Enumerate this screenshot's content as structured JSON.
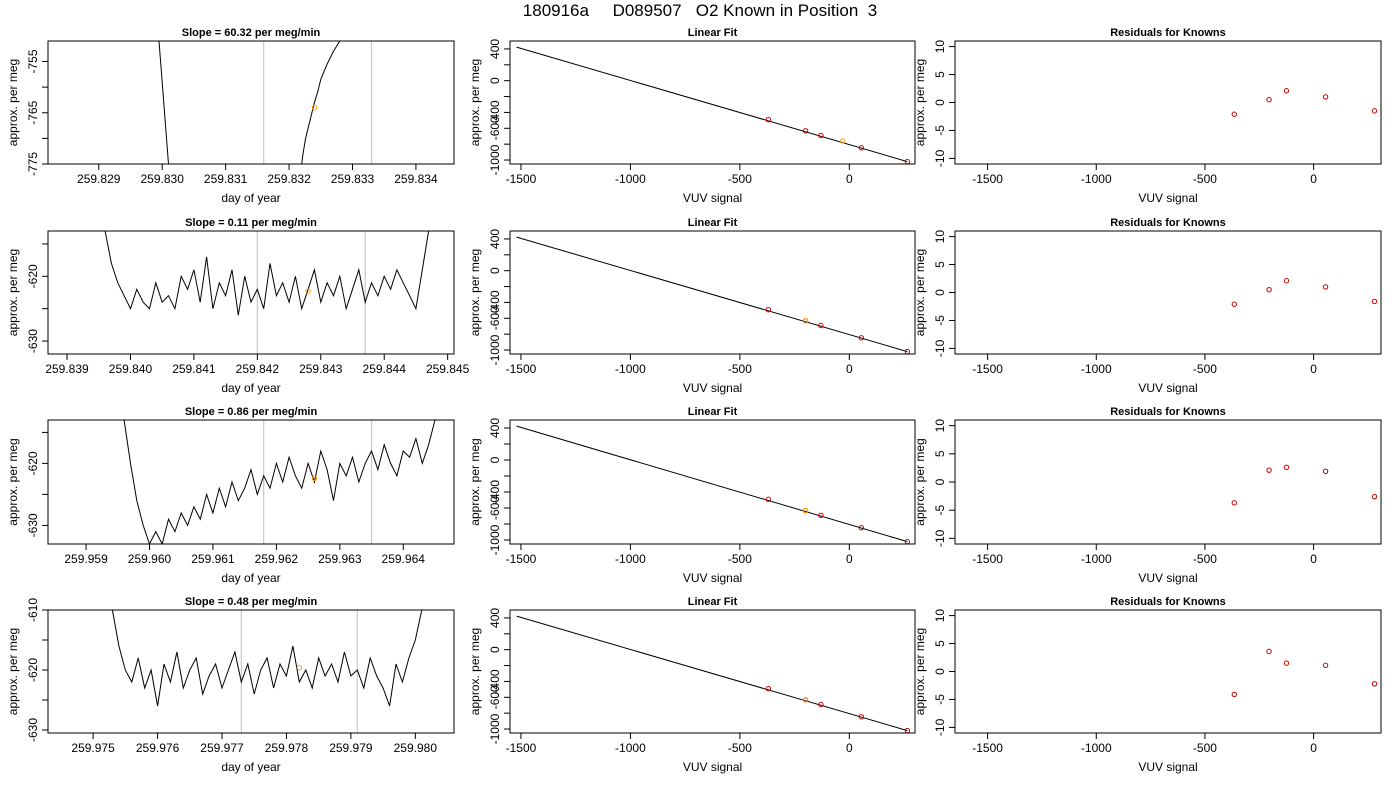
{
  "figure": {
    "title": "180916a     D089507   O2 Known in Position  3"
  },
  "chart_data": [
    {
      "panel": "row1-col1",
      "type": "line",
      "title": "Slope =  60.32  per meg/min",
      "xlabel": "day of year",
      "ylabel": "approx. per meg",
      "xlim": [
        259.8282,
        259.8346
      ],
      "ylim": [
        -775,
        -751
      ],
      "xticks": [
        259.829,
        259.83,
        259.831,
        259.832,
        259.833,
        259.834
      ],
      "xtick_labels": [
        "259.829",
        "259.830",
        "259.831",
        "259.832",
        "259.833",
        "259.834"
      ],
      "yticks": [
        -775,
        -765,
        -755
      ],
      "ytick_labels": [
        "-775",
        "-765",
        "-755"
      ],
      "yminor": [
        -770,
        -760
      ],
      "vlines": [
        259.8316,
        259.8333
      ],
      "marker": {
        "x": 259.8324,
        "y": -764.0,
        "color": "#ff9900"
      },
      "series": [
        {
          "x": [
            259.82995,
            259.8301
          ],
          "y": [
            -751,
            -775
          ]
        },
        {
          "x": [
            259.8322,
            259.83222,
            259.83226,
            259.8323,
            259.83235,
            259.8324,
            259.83245,
            259.8325,
            259.8326,
            259.8327,
            259.8328
          ],
          "y": [
            -775,
            -773,
            -770,
            -768,
            -765.5,
            -763,
            -761,
            -758.5,
            -755.5,
            -753,
            -751
          ]
        }
      ]
    },
    {
      "panel": "row2-col1",
      "type": "line",
      "title": "Slope =  0.11  per meg/min",
      "xlabel": "day of year",
      "ylabel": "approx. per meg",
      "xlim": [
        259.8387,
        259.8451
      ],
      "ylim": [
        -632,
        -613
      ],
      "xticks": [
        259.839,
        259.84,
        259.841,
        259.842,
        259.843,
        259.844,
        259.845
      ],
      "xtick_labels": [
        "259.839",
        "259.840",
        "259.841",
        "259.842",
        "259.843",
        "259.844",
        "259.845"
      ],
      "yticks": [
        -630,
        -620
      ],
      "ytick_labels": [
        "-630",
        "-620"
      ],
      "yminor": [
        -625,
        -615
      ],
      "vlines": [
        259.842,
        259.8437
      ],
      "marker": {
        "x": 259.8428,
        "y": -622.3,
        "color": "#ff9900"
      },
      "series": [
        {
          "x": [
            259.8396,
            259.8397,
            259.8398,
            259.8399,
            259.84,
            259.8401,
            259.8402,
            259.8403,
            259.8404,
            259.8405,
            259.8406,
            259.8407,
            259.8408,
            259.8409,
            259.841,
            259.8411,
            259.8412,
            259.8413,
            259.8414,
            259.8415,
            259.8416,
            259.8417,
            259.8418,
            259.8419,
            259.842,
            259.8421,
            259.8422,
            259.8423,
            259.8424,
            259.8425,
            259.8426,
            259.8427,
            259.8428,
            259.8429,
            259.843,
            259.8431,
            259.8432,
            259.8433,
            259.8434,
            259.8435,
            259.8436,
            259.8437,
            259.8438,
            259.8439,
            259.844,
            259.8441,
            259.8442,
            259.8443,
            259.8444,
            259.8445,
            259.8446,
            259.8447
          ],
          "y": [
            -613,
            -618,
            -621,
            -623,
            -625,
            -622,
            -624,
            -625,
            -621,
            -624,
            -623,
            -625,
            -620,
            -622,
            -619,
            -624,
            -617,
            -625,
            -621,
            -623,
            -619,
            -626,
            -620,
            -624,
            -622,
            -625,
            -618,
            -623,
            -621,
            -624,
            -620,
            -625,
            -622,
            -619,
            -624,
            -621,
            -623,
            -620,
            -625,
            -622,
            -619,
            -624,
            -621,
            -623,
            -620,
            -622,
            -619,
            -621,
            -623,
            -625,
            -619,
            -613
          ]
        }
      ]
    },
    {
      "panel": "row3-col1",
      "type": "line",
      "title": "Slope =  0.86  per meg/min",
      "xlabel": "day of year",
      "ylabel": "approx. per meg",
      "xlim": [
        259.9584,
        259.9648
      ],
      "ylim": [
        -633,
        -613
      ],
      "xticks": [
        259.959,
        259.96,
        259.961,
        259.962,
        259.963,
        259.964
      ],
      "xtick_labels": [
        "259.959",
        "259.960",
        "259.961",
        "259.962",
        "259.963",
        "259.964"
      ],
      "yticks": [
        -630,
        -620
      ],
      "ytick_labels": [
        "-630",
        "-620"
      ],
      "yminor": [
        -625,
        -615
      ],
      "vlines": [
        259.9618,
        259.9635
      ],
      "marker": {
        "x": 259.9626,
        "y": -622.4,
        "color": "#ff9900"
      },
      "series": [
        {
          "x": [
            259.9596,
            259.9597,
            259.9598,
            259.9599,
            259.96,
            259.9601,
            259.9602,
            259.9603,
            259.9604,
            259.9605,
            259.9606,
            259.9607,
            259.9608,
            259.9609,
            259.961,
            259.9611,
            259.9612,
            259.9613,
            259.9614,
            259.9615,
            259.9616,
            259.9617,
            259.9618,
            259.9619,
            259.962,
            259.9621,
            259.9622,
            259.9623,
            259.9624,
            259.9625,
            259.9626,
            259.9627,
            259.9628,
            259.9629,
            259.963,
            259.9631,
            259.9632,
            259.9633,
            259.9634,
            259.9635,
            259.9636,
            259.9637,
            259.9638,
            259.9639,
            259.964,
            259.9641,
            259.9642,
            259.9643,
            259.9644,
            259.9645
          ],
          "y": [
            -613,
            -620,
            -626,
            -630,
            -633,
            -631,
            -633,
            -629,
            -631,
            -628,
            -630,
            -627,
            -629,
            -625,
            -628,
            -624,
            -627,
            -623,
            -626,
            -624,
            -621,
            -625,
            -622,
            -624,
            -620,
            -623,
            -619,
            -622,
            -624,
            -620,
            -623,
            -618,
            -621,
            -626,
            -620,
            -622,
            -619,
            -623,
            -620,
            -618,
            -621,
            -617,
            -620,
            -622,
            -618,
            -619,
            -616,
            -620,
            -617,
            -613
          ]
        }
      ]
    },
    {
      "panel": "row4-col1",
      "type": "line",
      "title": "Slope =  0.48  per meg/min",
      "xlabel": "day of year",
      "ylabel": "approx. per meg",
      "xlim": [
        259.9743,
        259.9806
      ],
      "ylim": [
        -630.5,
        -610
      ],
      "xticks": [
        259.975,
        259.976,
        259.977,
        259.978,
        259.979,
        259.98
      ],
      "xtick_labels": [
        "259.975",
        "259.976",
        "259.977",
        "259.978",
        "259.979",
        "259.980"
      ],
      "yticks": [
        -630,
        -620,
        -610
      ],
      "ytick_labels": [
        "-630",
        "-620",
        "-610"
      ],
      "yminor": [
        -625,
        -615
      ],
      "vlines": [
        259.9773,
        259.9791
      ],
      "marker": {
        "x": 259.9782,
        "y": -619.6,
        "color": "#ff9900"
      },
      "series": [
        {
          "x": [
            259.9753,
            259.9754,
            259.9755,
            259.9756,
            259.9757,
            259.9758,
            259.9759,
            259.976,
            259.9761,
            259.9762,
            259.9763,
            259.9764,
            259.9765,
            259.9766,
            259.9767,
            259.9768,
            259.9769,
            259.977,
            259.9771,
            259.9772,
            259.9773,
            259.9774,
            259.9775,
            259.9776,
            259.9777,
            259.9778,
            259.9779,
            259.978,
            259.9781,
            259.9782,
            259.9783,
            259.9784,
            259.9785,
            259.9786,
            259.9787,
            259.9788,
            259.9789,
            259.979,
            259.9791,
            259.9792,
            259.9793,
            259.9794,
            259.9795,
            259.9796,
            259.9797,
            259.9798,
            259.9799,
            259.98,
            259.9801
          ],
          "y": [
            -610,
            -616,
            -620,
            -622,
            -618,
            -623,
            -620,
            -626,
            -619,
            -622,
            -617,
            -623,
            -620,
            -618,
            -624,
            -621,
            -619,
            -623,
            -620,
            -617,
            -622,
            -619,
            -624,
            -620,
            -618,
            -623,
            -619,
            -621,
            -616,
            -622,
            -620,
            -623,
            -618,
            -621,
            -619,
            -622,
            -617,
            -621,
            -620,
            -623,
            -618,
            -621,
            -623,
            -626,
            -619,
            -622,
            -618,
            -615,
            -610
          ]
        }
      ]
    },
    {
      "panel": "row1-col2",
      "type": "scatter",
      "title": "Linear Fit",
      "xlabel": "VUV signal",
      "ylabel": "approx. per meg",
      "xlim": [
        -1550,
        300
      ],
      "ylim": [
        -1050,
        500
      ],
      "xticks": [
        -1500,
        -1000,
        -500,
        0
      ],
      "xtick_labels": [
        "-1500",
        "-1000",
        "-500",
        "0"
      ],
      "yticks": [
        -1000,
        -800,
        -600,
        -400,
        -200,
        0,
        200,
        400
      ],
      "ytick_labels": [
        "-1000",
        "",
        "-600",
        "-400",
        "",
        "0",
        "",
        "400"
      ],
      "fit_line": {
        "x": [
          -1520,
          265
        ],
        "y": [
          423,
          -1020
        ]
      },
      "points": {
        "x": [
          -370,
          -200,
          -130,
          55,
          265
        ],
        "y": [
          -492,
          -632,
          -691,
          -846,
          -1020
        ],
        "color": "#cc0000"
      },
      "marker": {
        "x": -30,
        "y": -760,
        "color": "#ff9900"
      }
    },
    {
      "panel": "row2-col2",
      "type": "scatter",
      "title": "Linear Fit",
      "xlabel": "VUV signal",
      "ylabel": "approx. per meg",
      "xlim": [
        -1550,
        300
      ],
      "ylim": [
        -1050,
        500
      ],
      "xticks": [
        -1500,
        -1000,
        -500,
        0
      ],
      "xtick_labels": [
        "-1500",
        "-1000",
        "-500",
        "0"
      ],
      "yticks": [
        -1000,
        -800,
        -600,
        -400,
        -200,
        0,
        200,
        400
      ],
      "ytick_labels": [
        "-1000",
        "",
        "-600",
        "-400",
        "",
        "0",
        "",
        "400"
      ],
      "fit_line": {
        "x": [
          -1520,
          265
        ],
        "y": [
          423,
          -1020
        ]
      },
      "points": {
        "x": [
          -370,
          -200,
          -130,
          55,
          265
        ],
        "y": [
          -492,
          -632,
          -691,
          -846,
          -1020
        ],
        "color": "#cc0000"
      },
      "marker": {
        "x": -200,
        "y": -632,
        "color": "#ff9900"
      }
    },
    {
      "panel": "row3-col2",
      "type": "scatter",
      "title": "Linear Fit",
      "xlabel": "VUV signal",
      "ylabel": "approx. per meg",
      "xlim": [
        -1550,
        300
      ],
      "ylim": [
        -1050,
        500
      ],
      "xticks": [
        -1500,
        -1000,
        -500,
        0
      ],
      "xtick_labels": [
        "-1500",
        "-1000",
        "-500",
        "0"
      ],
      "yticks": [
        -1000,
        -800,
        -600,
        -400,
        -200,
        0,
        200,
        400
      ],
      "ytick_labels": [
        "-1000",
        "",
        "-600",
        "-400",
        "",
        "0",
        "",
        "400"
      ],
      "fit_line": {
        "x": [
          -1520,
          265
        ],
        "y": [
          423,
          -1020
        ]
      },
      "points": {
        "x": [
          -370,
          -200,
          -130,
          55,
          265
        ],
        "y": [
          -492,
          -632,
          -691,
          -846,
          -1020
        ],
        "color": "#cc0000"
      },
      "marker": {
        "x": -200,
        "y": -632,
        "color": "#ff9900"
      }
    },
    {
      "panel": "row4-col2",
      "type": "scatter",
      "title": "Linear Fit",
      "xlabel": "VUV signal",
      "ylabel": "approx. per meg",
      "xlim": [
        -1550,
        300
      ],
      "ylim": [
        -1050,
        500
      ],
      "xticks": [
        -1500,
        -1000,
        -500,
        0
      ],
      "xtick_labels": [
        "-1500",
        "-1000",
        "-500",
        "0"
      ],
      "yticks": [
        -1000,
        -800,
        -600,
        -400,
        -200,
        0,
        200,
        400
      ],
      "ytick_labels": [
        "-1000",
        "",
        "-600",
        "-400",
        "",
        "0",
        "",
        "400"
      ],
      "fit_line": {
        "x": [
          -1520,
          265
        ],
        "y": [
          423,
          -1020
        ]
      },
      "points": {
        "x": [
          -370,
          -200,
          -130,
          55,
          265
        ],
        "y": [
          -492,
          -632,
          -691,
          -846,
          -1020
        ],
        "color": "#cc0000"
      },
      "marker": {
        "x": -200,
        "y": -632,
        "color": "#ff9900"
      }
    },
    {
      "panel": "row1-col3",
      "type": "scatter",
      "title": "Residuals for Knowns",
      "xlabel": "VUV signal",
      "ylabel": "approx. per meg",
      "xlim": [
        -1650,
        310
      ],
      "ylim": [
        -11,
        11
      ],
      "xticks": [
        -1500,
        -1000,
        -500,
        0
      ],
      "xtick_labels": [
        "-1500",
        "-1000",
        "-500",
        "0"
      ],
      "yticks": [
        -10,
        -5,
        0,
        5,
        10
      ],
      "ytick_labels": [
        "-10",
        "-5",
        "0",
        "5",
        "10"
      ],
      "points": {
        "x": [
          -365,
          -205,
          -125,
          55,
          280
        ],
        "y": [
          -2.1,
          0.5,
          2.1,
          1.0,
          -1.5
        ],
        "color": "#cc0000"
      }
    },
    {
      "panel": "row2-col3",
      "type": "scatter",
      "title": "Residuals for Knowns",
      "xlabel": "VUV signal",
      "ylabel": "approx. per meg",
      "xlim": [
        -1650,
        310
      ],
      "ylim": [
        -11,
        11
      ],
      "xticks": [
        -1500,
        -1000,
        -500,
        0
      ],
      "xtick_labels": [
        "-1500",
        "-1000",
        "-500",
        "0"
      ],
      "yticks": [
        -10,
        -5,
        0,
        5,
        10
      ],
      "ytick_labels": [
        "-10",
        "-5",
        "0",
        "5",
        "10"
      ],
      "points": {
        "x": [
          -365,
          -205,
          -125,
          55,
          280
        ],
        "y": [
          -2.1,
          0.5,
          2.1,
          1.0,
          -1.6
        ],
        "color": "#cc0000"
      }
    },
    {
      "panel": "row3-col3",
      "type": "scatter",
      "title": "Residuals for Knowns",
      "xlabel": "VUV signal",
      "ylabel": "approx. per meg",
      "xlim": [
        -1650,
        310
      ],
      "ylim": [
        -11,
        11
      ],
      "xticks": [
        -1500,
        -1000,
        -500,
        0
      ],
      "xtick_labels": [
        "-1500",
        "-1000",
        "-500",
        "0"
      ],
      "yticks": [
        -10,
        -5,
        0,
        5,
        10
      ],
      "ytick_labels": [
        "-10",
        "-5",
        "0",
        "5",
        "10"
      ],
      "points": {
        "x": [
          -365,
          -205,
          -125,
          55,
          280
        ],
        "y": [
          -3.7,
          2.1,
          2.6,
          1.9,
          -2.6
        ],
        "color": "#cc0000"
      }
    },
    {
      "panel": "row4-col3",
      "type": "scatter",
      "title": "Residuals for Knowns",
      "xlabel": "VUV signal",
      "ylabel": "approx. per meg",
      "xlim": [
        -1650,
        310
      ],
      "ylim": [
        -11,
        11
      ],
      "xticks": [
        -1500,
        -1000,
        -500,
        0
      ],
      "xtick_labels": [
        "-1500",
        "-1000",
        "-500",
        "0"
      ],
      "yticks": [
        -10,
        -5,
        0,
        5,
        10
      ],
      "ytick_labels": [
        "-10",
        "-5",
        "0",
        "5",
        "10"
      ],
      "points": {
        "x": [
          -365,
          -205,
          -125,
          55,
          280
        ],
        "y": [
          -4.1,
          3.6,
          1.5,
          1.1,
          -2.2
        ],
        "color": "#cc0000"
      }
    }
  ]
}
